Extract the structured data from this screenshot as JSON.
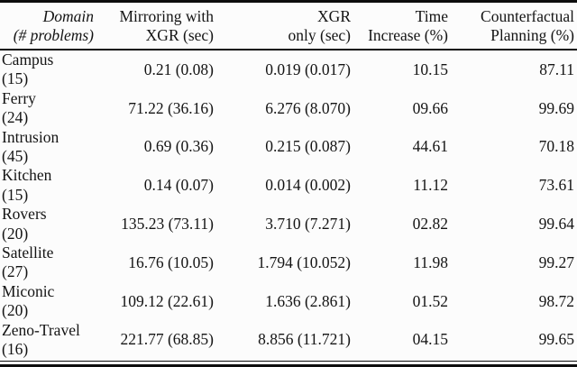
{
  "table": {
    "columns": [
      {
        "line1": "Domain",
        "line2": "(# problems)"
      },
      {
        "line1": "Mirroring with",
        "line2": "XGR (sec)"
      },
      {
        "line1": "XGR",
        "line2": "only (sec)"
      },
      {
        "line1": "Time",
        "line2": "Increase (%)"
      },
      {
        "line1": "Counterfactual",
        "line2": "Planning (%)"
      }
    ],
    "rows": [
      {
        "domain": "Campus",
        "problems": "(15)",
        "mirroring_with_xgr_sec": "0.21 (0.08)",
        "xgr_only_sec": "0.019 (0.017)",
        "time_increase_pct": "10.15",
        "counterfactual_planning_pct": "87.11"
      },
      {
        "domain": "Ferry",
        "problems": "(24)",
        "mirroring_with_xgr_sec": "71.22 (36.16)",
        "xgr_only_sec": "6.276 (8.070)",
        "time_increase_pct": "09.66",
        "counterfactual_planning_pct": "99.69"
      },
      {
        "domain": "Intrusion",
        "problems": "(45)",
        "mirroring_with_xgr_sec": "0.69 (0.36)",
        "xgr_only_sec": "0.215 (0.087)",
        "time_increase_pct": "44.61",
        "counterfactual_planning_pct": "70.18"
      },
      {
        "domain": "Kitchen",
        "problems": "(15)",
        "mirroring_with_xgr_sec": "0.14 (0.07)",
        "xgr_only_sec": "0.014 (0.002)",
        "time_increase_pct": "11.12",
        "counterfactual_planning_pct": "73.61"
      },
      {
        "domain": "Rovers",
        "problems": "(20)",
        "mirroring_with_xgr_sec": "135.23 (73.11)",
        "xgr_only_sec": "3.710 (7.271)",
        "time_increase_pct": "02.82",
        "counterfactual_planning_pct": "99.64"
      },
      {
        "domain": "Satellite",
        "problems": "(27)",
        "mirroring_with_xgr_sec": "16.76 (10.05)",
        "xgr_only_sec": "1.794 (10.052)",
        "time_increase_pct": "11.98",
        "counterfactual_planning_pct": "99.27"
      },
      {
        "domain": "Miconic",
        "problems": "(20)",
        "mirroring_with_xgr_sec": "109.12 (22.61)",
        "xgr_only_sec": "1.636 (2.861)",
        "time_increase_pct": "01.52",
        "counterfactual_planning_pct": "98.72"
      },
      {
        "domain": "Zeno-Travel",
        "problems": "(16)",
        "mirroring_with_xgr_sec": "221.77 (68.85)",
        "xgr_only_sec": "8.856 (11.721)",
        "time_increase_pct": "04.15",
        "counterfactual_planning_pct": "99.65"
      }
    ],
    "colors": {
      "rule": "#0d0d0d",
      "text": "#141414",
      "background": "#fcfcfc"
    }
  }
}
